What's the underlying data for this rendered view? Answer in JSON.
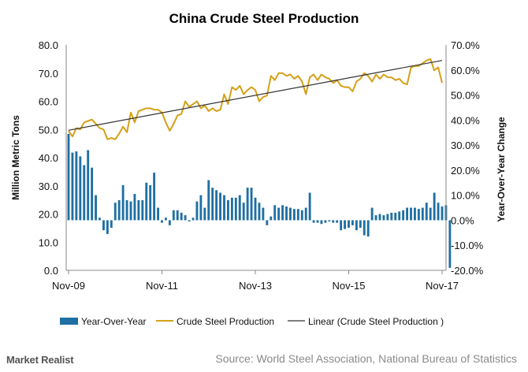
{
  "brand": "Market Realist",
  "source": "Source: World Steel Association, National Bureau of Statistics",
  "colors": {
    "bars": "#1f6fa3",
    "line": "#d4a017",
    "trend": "#333333"
  },
  "chart_data": {
    "type": "bar+line",
    "title": "China Crude Steel Production",
    "ylabel_left": "Million Metric Tons",
    "ylabel_right": "Year-Over-Year Change",
    "left_ticks": [
      "0.0",
      "10.0",
      "20.0",
      "30.0",
      "40.0",
      "50.0",
      "60.0",
      "70.0",
      "80.0"
    ],
    "right_ticks": [
      "-20.0%",
      "-10.0%",
      "0.0%",
      "10.0%",
      "20.0%",
      "30.0%",
      "40.0%",
      "50.0%",
      "60.0%",
      "70.0%"
    ],
    "x_ticks": [
      {
        "label": "Nov-09",
        "index": 0
      },
      {
        "label": "Nov-11",
        "index": 24
      },
      {
        "label": "Nov-13",
        "index": 48
      },
      {
        "label": "Nov-15",
        "index": 72
      },
      {
        "label": "Nov-17",
        "index": 96
      }
    ],
    "ylim_left": [
      0,
      80
    ],
    "ylim_right": [
      -20,
      70
    ],
    "x_count": 97,
    "legend": [
      "Year-Over-Year",
      "Crude Steel Production",
      "Linear (Crude Steel Production )"
    ],
    "trend": {
      "start": 49.7,
      "end": 74.5
    },
    "series": [
      {
        "name": "Crude Steel Production",
        "axis": "left",
        "values": [
          49.5,
          47.5,
          50.5,
          50.0,
          52.5,
          53.0,
          53.5,
          52.0,
          50.5,
          50.0,
          46.5,
          47.0,
          46.5,
          48.5,
          51.0,
          49.0,
          56.0,
          52.5,
          56.5,
          57.0,
          57.5,
          57.5,
          57.0,
          57.0,
          56.0,
          52.5,
          49.5,
          52.0,
          55.0,
          55.5,
          60.0,
          58.0,
          59.0,
          60.0,
          57.5,
          58.5,
          56.5,
          57.5,
          56.5,
          57.0,
          62.5,
          59.0,
          65.0,
          64.0,
          65.5,
          62.5,
          64.0,
          65.0,
          64.0,
          60.0,
          61.5,
          62.0,
          69.0,
          67.5,
          70.0,
          70.0,
          69.0,
          69.5,
          68.0,
          69.0,
          67.0,
          62.5,
          68.5,
          69.5,
          67.5,
          69.5,
          68.5,
          68.0,
          66.5,
          67.5,
          65.5,
          65.0,
          65.0,
          63.5,
          67.0,
          68.0,
          70.0,
          69.0,
          67.0,
          69.5,
          68.0,
          69.5,
          68.5,
          68.5,
          67.5,
          68.0,
          66.5,
          66.0,
          72.0,
          72.5,
          72.5,
          73.5,
          74.5,
          75.0,
          71.0,
          72.0,
          66.5
        ]
      },
      {
        "name": "Year-Over-Year",
        "axis": "right",
        "values": [
          34.5,
          27.0,
          27.5,
          25.5,
          22.0,
          28.0,
          21.0,
          10.0,
          1.0,
          -4.0,
          -5.5,
          -3.0,
          7.0,
          8.0,
          14.0,
          8.0,
          7.5,
          10.5,
          8.0,
          8.0,
          15.0,
          14.0,
          19.0,
          5.0,
          -1.0,
          1.0,
          -2.0,
          4.0,
          4.0,
          3.0,
          2.0,
          -0.5,
          1.0,
          7.5,
          10.0,
          5.0,
          16.0,
          13.0,
          12.0,
          11.0,
          10.0,
          8.0,
          9.0,
          9.0,
          10.0,
          7.0,
          13.0,
          13.0,
          9.0,
          7.0,
          5.0,
          -2.0,
          1.5,
          6.0,
          5.0,
          6.0,
          5.5,
          5.0,
          4.5,
          4.5,
          4.0,
          5.0,
          11.0,
          -1.0,
          -1.0,
          -1.5,
          -1.0,
          -0.5,
          -1.0,
          -1.0,
          -4.0,
          -3.5,
          -3.0,
          -2.0,
          -4.0,
          -3.0,
          -6.0,
          -6.5,
          5.0,
          2.0,
          2.5,
          2.0,
          2.5,
          3.0,
          3.0,
          3.5,
          4.0,
          5.0,
          5.0,
          5.0,
          4.5,
          5.0,
          7.0,
          5.0,
          11.0,
          7.0,
          5.5,
          6.0,
          -19.0
        ]
      }
    ]
  }
}
